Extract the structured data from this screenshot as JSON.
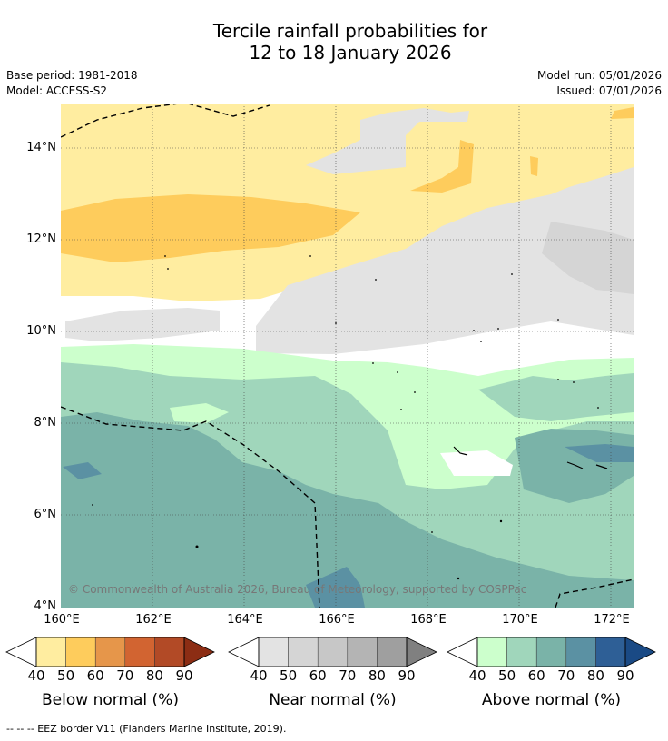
{
  "title_line1": "Tercile rainfall probabilities for",
  "title_line2": "12 to 18 January 2026",
  "meta": {
    "base_period": "Base period: 1981-2018",
    "model": "Model: ACCESS-S2",
    "model_run": "Model run: 05/01/2026",
    "issued": "Issued: 07/01/2026"
  },
  "map": {
    "lat_labels": [
      "14°N",
      "12°N",
      "10°N",
      "8°N",
      "6°N",
      "4°N"
    ],
    "lon_labels": [
      "160°E",
      "162°E",
      "164°E",
      "166°E",
      "168°E",
      "170°E",
      "172°E"
    ],
    "copyright": "© Commonwealth of Australia 2026, Bureau of Meteorology, supported by COSPPac"
  },
  "colorbars": [
    {
      "title": "Below normal (%)",
      "ticks": [
        "40",
        "50",
        "60",
        "70",
        "80",
        "90"
      ],
      "colors": [
        "#ffeda0",
        "#fecc5c",
        "#e6964a",
        "#d26431",
        "#b24a26",
        "#8c2d14"
      ]
    },
    {
      "title": "Near normal (%)",
      "ticks": [
        "40",
        "50",
        "60",
        "70",
        "80",
        "90"
      ],
      "colors": [
        "#e3e3e3",
        "#d5d5d5",
        "#c7c7c7",
        "#b4b4b4",
        "#9f9f9f",
        "#808080"
      ]
    },
    {
      "title": "Above normal (%)",
      "ticks": [
        "40",
        "50",
        "60",
        "70",
        "80",
        "90"
      ],
      "colors": [
        "#ccffcc",
        "#a0d6bb",
        "#7ab3a8",
        "#5b91a3",
        "#2e5f96",
        "#1a4a85"
      ]
    }
  ],
  "footnote": "--  --  -- EEZ border V11 (Flanders Marine Institute, 2019)."
}
